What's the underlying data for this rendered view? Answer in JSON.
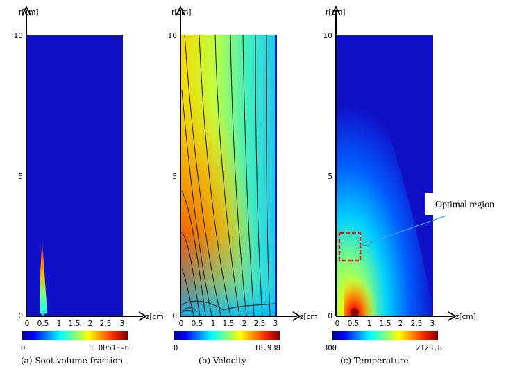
{
  "panels": [
    {
      "id": "soot",
      "y_axis_label": "r[cm]",
      "x_axis_label": "z[cm",
      "y_ticks": [
        "0",
        "5",
        "10"
      ],
      "x_ticks": [
        "0",
        "0.5",
        "1",
        "1.5",
        "2",
        "2.5",
        "3"
      ],
      "colorbar_min": "0",
      "colorbar_max": "1.0051E-6",
      "caption": "(a) Soot volume fraction"
    },
    {
      "id": "velocity",
      "y_axis_label": "r[cm]",
      "x_axis_label": "z[cm",
      "y_ticks": [
        "0",
        "5",
        "10"
      ],
      "x_ticks": [
        "0",
        "0.5",
        "1",
        "1.5",
        "2",
        "2.5",
        "3"
      ],
      "colorbar_min": "0",
      "colorbar_max": "18.938",
      "caption": "(b) Velocity"
    },
    {
      "id": "temperature",
      "y_axis_label": "r[cm]",
      "x_axis_label": "z[cm]",
      "y_ticks": [
        "0",
        "5",
        "10"
      ],
      "x_ticks": [
        "0",
        "0.5",
        "1",
        "1.5",
        "2",
        "2.5",
        "3"
      ],
      "colorbar_min": "300",
      "colorbar_max": "2123.8",
      "caption": "(c) Temperature"
    }
  ],
  "annotation": {
    "label": "Optimal region",
    "box_color": "#e2231a",
    "arrow_color": "#3aa6d8"
  },
  "colors": {
    "jet": [
      "#00008f",
      "#0000ff",
      "#0080ff",
      "#00ffff",
      "#80ff80",
      "#ffff00",
      "#ff8000",
      "#ff0000",
      "#800000"
    ],
    "background": "#1010c8"
  }
}
